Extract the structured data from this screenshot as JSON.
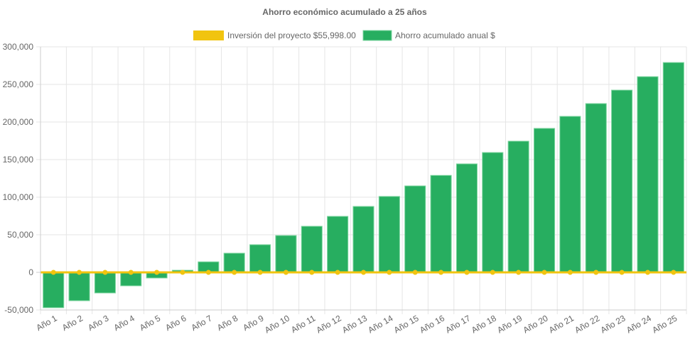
{
  "chart_data": {
    "type": "bar",
    "title": "Ahorro económico acumulado a 25 años",
    "categories": [
      "Año 1",
      "Año 2",
      "Año 3",
      "Año 4",
      "Año 5",
      "Año 6",
      "Año 7",
      "Año 8",
      "Año 9",
      "Año 10",
      "Año 11",
      "Año 12",
      "Año 13",
      "Año 14",
      "Año 15",
      "Año 16",
      "Año 17",
      "Año 18",
      "Año 19",
      "Año 20",
      "Año 21",
      "Año 22",
      "Año 23",
      "Año 24",
      "Año 25"
    ],
    "series": [
      {
        "name": "Inversión del proyecto $55,998.00",
        "type": "line",
        "color": "#f1c40f",
        "values": [
          0,
          0,
          0,
          0,
          0,
          0,
          0,
          0,
          0,
          0,
          0,
          0,
          0,
          0,
          0,
          0,
          0,
          0,
          0,
          0,
          0,
          0,
          0,
          0,
          0
        ]
      },
      {
        "name": "Ahorro acumulado anual $",
        "type": "bar",
        "color": "#27ae60",
        "values": [
          -47000,
          -37700,
          -27400,
          -17900,
          -7500,
          2800,
          14000,
          25500,
          36800,
          49000,
          61300,
          74500,
          87700,
          101000,
          115000,
          129000,
          144300,
          159400,
          174500,
          191500,
          207500,
          224500,
          242400,
          260300,
          279100
        ]
      }
    ],
    "ylim": [
      -50000,
      300000
    ],
    "yticks": [
      "300,000",
      "250,000",
      "200,000",
      "150,000",
      "100,000",
      "50,000",
      "0",
      "-50,000"
    ],
    "ytick_values": [
      300000,
      250000,
      200000,
      150000,
      100000,
      50000,
      0,
      -50000
    ],
    "grid": true,
    "legend": "top"
  }
}
